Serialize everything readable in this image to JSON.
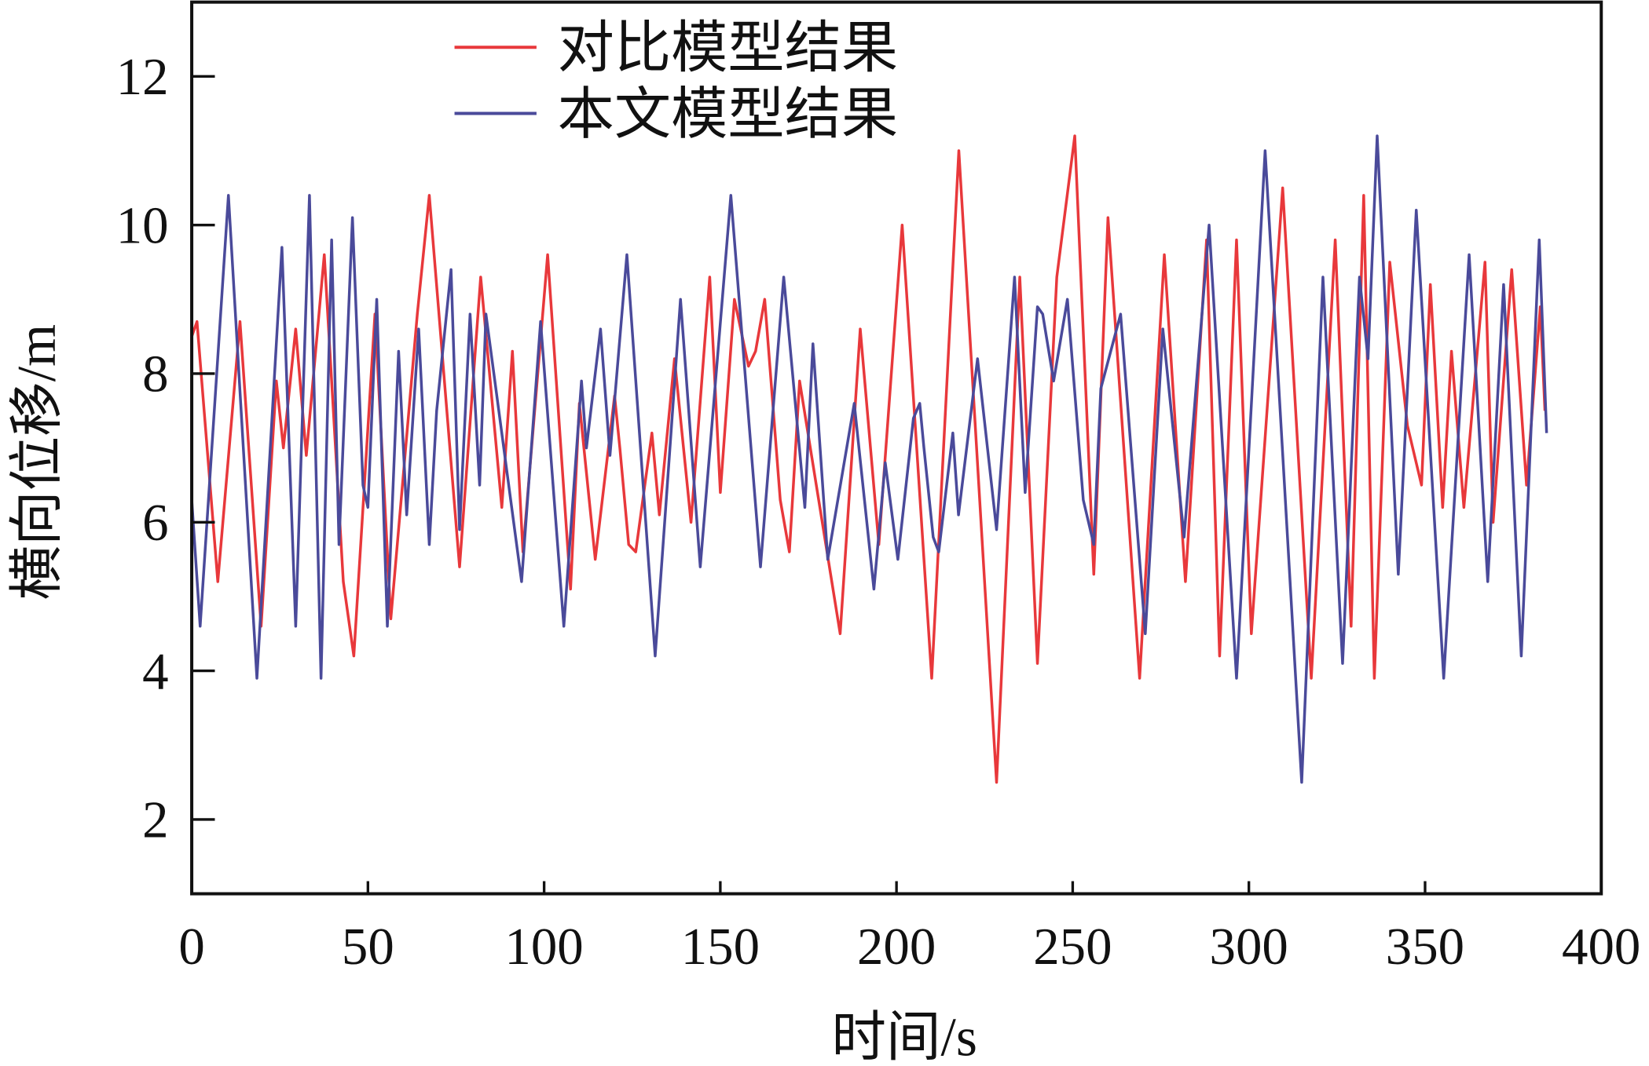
{
  "chart_data": {
    "type": "line",
    "title": "",
    "xlabel": "时间/s",
    "ylabel": "横向位移/m",
    "xlim": [
      0,
      400
    ],
    "ylim": [
      1,
      13
    ],
    "xticks": [
      0,
      50,
      100,
      150,
      200,
      250,
      300,
      350,
      400
    ],
    "yticks": [
      2,
      4,
      6,
      8,
      10,
      12
    ],
    "grid": false,
    "legend_position": "top-center",
    "series": [
      {
        "name": "对比模型结果",
        "color": "#e8383b",
        "points": [
          [
            0,
            8.5
          ],
          [
            1.5,
            8.7
          ],
          [
            7.4,
            5.2
          ],
          [
            13.7,
            8.7
          ],
          [
            19.7,
            4.6
          ],
          [
            24,
            7.9
          ],
          [
            26,
            7
          ],
          [
            29.5,
            8.6
          ],
          [
            32.5,
            6.9
          ],
          [
            37.6,
            9.6
          ],
          [
            43,
            5.2
          ],
          [
            46,
            4.2
          ],
          [
            52,
            8.8
          ],
          [
            56.5,
            4.7
          ],
          [
            64,
            8.8
          ],
          [
            67.4,
            10.4
          ],
          [
            76,
            5.4
          ],
          [
            82,
            9.3
          ],
          [
            88,
            6.2
          ],
          [
            91,
            8.3
          ],
          [
            94,
            5.6
          ],
          [
            101,
            9.6
          ],
          [
            107.5,
            5.1
          ],
          [
            110,
            7.6
          ],
          [
            114.5,
            5.5
          ],
          [
            120,
            7.7
          ],
          [
            121.5,
            7
          ],
          [
            124,
            5.7
          ],
          [
            126,
            5.6
          ],
          [
            130.6,
            7.2
          ],
          [
            132.7,
            6.1
          ],
          [
            137,
            8.2
          ],
          [
            141.7,
            6
          ],
          [
            147,
            9.3
          ],
          [
            150,
            6.4
          ],
          [
            154,
            9
          ],
          [
            158,
            8.1
          ],
          [
            160,
            8.3
          ],
          [
            162.6,
            9
          ],
          [
            167,
            6.3
          ],
          [
            169.6,
            5.6
          ],
          [
            172.5,
            7.9
          ],
          [
            184,
            4.5
          ],
          [
            189.7,
            8.6
          ],
          [
            195,
            5.7
          ],
          [
            201.6,
            10
          ],
          [
            210,
            3.9
          ],
          [
            217.7,
            11
          ],
          [
            228.4,
            2.5
          ],
          [
            235,
            9.3
          ],
          [
            240,
            4.1
          ],
          [
            245.5,
            9.3
          ],
          [
            250.6,
            11.2
          ],
          [
            256,
            5.3
          ],
          [
            260,
            10.1
          ],
          [
            269,
            3.9
          ],
          [
            276,
            9.6
          ],
          [
            282,
            5.2
          ],
          [
            288,
            9.8
          ],
          [
            291.7,
            4.2
          ],
          [
            296.5,
            9.8
          ],
          [
            300.7,
            4.5
          ],
          [
            309.6,
            10.5
          ],
          [
            317.7,
            3.9
          ],
          [
            324.5,
            9.8
          ],
          [
            329,
            4.6
          ],
          [
            332.6,
            10.4
          ],
          [
            335.6,
            3.9
          ],
          [
            340,
            9.5
          ],
          [
            345,
            7.3
          ],
          [
            349,
            6.5
          ],
          [
            351.5,
            9.2
          ],
          [
            355,
            6.2
          ],
          [
            357.5,
            8.3
          ],
          [
            361,
            6.2
          ],
          [
            367,
            9.5
          ],
          [
            369.3,
            6
          ],
          [
            374.6,
            9.4
          ],
          [
            378.8,
            6.5
          ],
          [
            382.7,
            8.9
          ],
          [
            384,
            7.5
          ]
        ]
      },
      {
        "name": "本文模型结果",
        "color": "#4a4a9a",
        "points": [
          [
            0,
            6.3
          ],
          [
            2.4,
            4.6
          ],
          [
            10.4,
            10.4
          ],
          [
            18.5,
            3.9
          ],
          [
            25.6,
            9.7
          ],
          [
            29.5,
            4.6
          ],
          [
            33.4,
            10.4
          ],
          [
            36.7,
            3.9
          ],
          [
            39.7,
            9.8
          ],
          [
            41.8,
            5.7
          ],
          [
            45.6,
            10.1
          ],
          [
            48.6,
            6.5
          ],
          [
            50,
            6.2
          ],
          [
            52.5,
            9
          ],
          [
            55.5,
            4.6
          ],
          [
            58.7,
            8.3
          ],
          [
            61,
            6.1
          ],
          [
            64.4,
            8.6
          ],
          [
            67.4,
            5.7
          ],
          [
            69.5,
            7.5
          ],
          [
            73.6,
            9.4
          ],
          [
            76,
            5.9
          ],
          [
            79,
            8.8
          ],
          [
            81.7,
            6.5
          ],
          [
            83.5,
            8.8
          ],
          [
            93.6,
            5.2
          ],
          [
            99,
            8.7
          ],
          [
            105.6,
            4.6
          ],
          [
            110.6,
            7.9
          ],
          [
            112,
            7
          ],
          [
            116,
            8.6
          ],
          [
            118.7,
            6.9
          ],
          [
            123.5,
            9.6
          ],
          [
            131.5,
            4.2
          ],
          [
            138.7,
            9
          ],
          [
            144.3,
            5.4
          ],
          [
            153,
            10.4
          ],
          [
            161.4,
            5.4
          ],
          [
            168,
            9.3
          ],
          [
            174,
            6.2
          ],
          [
            176.3,
            8.4
          ],
          [
            180.5,
            5.5
          ],
          [
            188,
            7.6
          ],
          [
            193.6,
            5.1
          ],
          [
            196.8,
            6.8
          ],
          [
            200.4,
            5.5
          ],
          [
            204.8,
            7.4
          ],
          [
            206.6,
            7.6
          ],
          [
            207.8,
            7
          ],
          [
            210.4,
            5.8
          ],
          [
            212,
            5.6
          ],
          [
            216,
            7.2
          ],
          [
            217.6,
            6.1
          ],
          [
            223,
            8.2
          ],
          [
            228.4,
            5.9
          ],
          [
            233.5,
            9.3
          ],
          [
            236.5,
            6.4
          ],
          [
            240,
            8.9
          ],
          [
            241.5,
            8.8
          ],
          [
            244.6,
            7.9
          ],
          [
            248.5,
            9
          ],
          [
            253,
            6.3
          ],
          [
            256,
            5.7
          ],
          [
            258,
            7.8
          ],
          [
            263.6,
            8.8
          ],
          [
            270.6,
            4.5
          ],
          [
            275.6,
            8.6
          ],
          [
            281.6,
            5.8
          ],
          [
            288.7,
            10
          ],
          [
            296.5,
            3.9
          ],
          [
            304.6,
            11
          ],
          [
            315,
            2.5
          ],
          [
            321,
            9.3
          ],
          [
            326.6,
            4.1
          ],
          [
            331.4,
            9.3
          ],
          [
            333.8,
            8.2
          ],
          [
            336.4,
            11.2
          ],
          [
            342.4,
            5.3
          ],
          [
            347.5,
            10.2
          ],
          [
            355.3,
            3.9
          ],
          [
            362.5,
            9.6
          ],
          [
            367.8,
            5.2
          ],
          [
            372.3,
            9.2
          ],
          [
            377.3,
            4.2
          ],
          [
            382.4,
            9.8
          ],
          [
            384.5,
            7.2
          ]
        ]
      }
    ]
  }
}
